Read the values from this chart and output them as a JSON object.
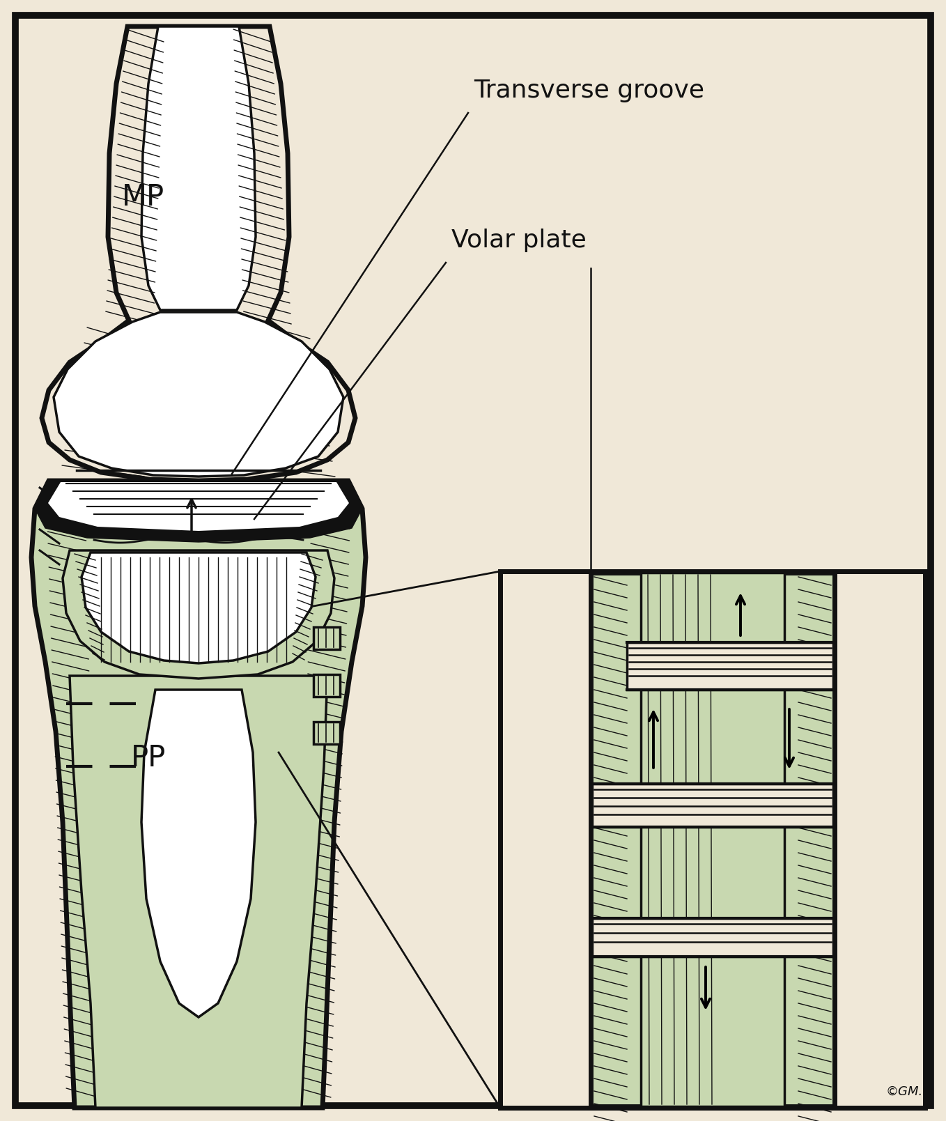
{
  "bg_color": "#f0e8d8",
  "border_color": "#111111",
  "bone_color": "#c8d8b0",
  "text_color": "#111111",
  "label_transverse": "Transverse groove",
  "label_volar": "Volar plate",
  "label_MP": "MP",
  "label_PP": "PP",
  "figsize": [
    13.58,
    16.09
  ],
  "dpi": 100,
  "lw_thick": 5.0,
  "lw_med": 2.5,
  "lw_thin": 1.0
}
